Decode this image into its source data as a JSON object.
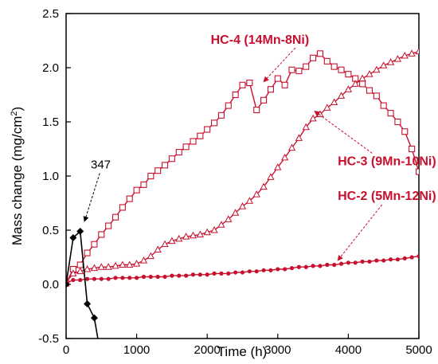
{
  "chart_data": {
    "type": "line",
    "title": "",
    "xlabel": "Time (h)",
    "ylabel_parts": [
      "Mass change (mg/cm",
      "2",
      ")"
    ],
    "xlim": [
      0,
      5000
    ],
    "ylim": [
      -0.5,
      2.5
    ],
    "x_ticks": [
      "0",
      "1000",
      "2000",
      "3000",
      "4000",
      "5000"
    ],
    "y_ticks": [
      "-0.5",
      "0.0",
      "0.5",
      "1.0",
      "1.5",
      "2.0",
      "2.5"
    ],
    "grid": false,
    "series": [
      {
        "name": "HC-4 (14Mn-8Ni)",
        "marker": "open-square",
        "color": "#c8102e",
        "x": [
          0,
          100,
          200,
          300,
          400,
          500,
          600,
          700,
          800,
          900,
          1000,
          1100,
          1200,
          1300,
          1400,
          1500,
          1600,
          1700,
          1800,
          1900,
          2000,
          2100,
          2200,
          2300,
          2400,
          2500,
          2600,
          2700,
          2800,
          2900,
          3000,
          3100,
          3200,
          3300,
          3400,
          3500,
          3600,
          3700,
          3800,
          3900,
          4000,
          4100,
          4200,
          4300,
          4400,
          4500,
          4600,
          4700,
          4800,
          4900,
          5000
        ],
        "y": [
          0.01,
          0.14,
          0.18,
          0.29,
          0.37,
          0.46,
          0.54,
          0.62,
          0.71,
          0.79,
          0.87,
          0.92,
          1.0,
          1.05,
          1.1,
          1.16,
          1.22,
          1.27,
          1.32,
          1.37,
          1.43,
          1.49,
          1.56,
          1.65,
          1.75,
          1.84,
          1.86,
          1.61,
          1.7,
          1.8,
          1.9,
          1.84,
          1.98,
          1.97,
          2.01,
          2.09,
          2.13,
          2.06,
          2.01,
          1.98,
          1.94,
          1.9,
          1.85,
          1.79,
          1.74,
          1.65,
          1.58,
          1.5,
          1.41,
          1.25,
          1.04
        ]
      },
      {
        "name": "HC-3 (9Mn-10Ni)",
        "marker": "open-triangle",
        "color": "#c8102e",
        "x": [
          0,
          100,
          200,
          300,
          400,
          500,
          600,
          700,
          800,
          900,
          1000,
          1100,
          1200,
          1300,
          1400,
          1500,
          1600,
          1700,
          1800,
          1900,
          2000,
          2100,
          2200,
          2300,
          2400,
          2500,
          2600,
          2700,
          2800,
          2900,
          3000,
          3100,
          3200,
          3300,
          3400,
          3500,
          3600,
          3700,
          3800,
          3900,
          4000,
          4100,
          4200,
          4300,
          4400,
          4500,
          4600,
          4700,
          4800,
          4900,
          5000
        ],
        "y": [
          0.02,
          0.1,
          0.12,
          0.14,
          0.15,
          0.16,
          0.16,
          0.17,
          0.18,
          0.18,
          0.19,
          0.22,
          0.26,
          0.32,
          0.37,
          0.4,
          0.42,
          0.44,
          0.45,
          0.46,
          0.48,
          0.5,
          0.55,
          0.6,
          0.66,
          0.72,
          0.77,
          0.83,
          0.9,
          0.99,
          1.08,
          1.17,
          1.26,
          1.35,
          1.45,
          1.53,
          1.57,
          1.63,
          1.68,
          1.74,
          1.8,
          1.85,
          1.9,
          1.94,
          1.98,
          2.02,
          2.05,
          2.08,
          2.11,
          2.13,
          2.15
        ]
      },
      {
        "name": "HC-2 (5Mn-12Ni)",
        "marker": "filled-circle",
        "color": "#c8102e",
        "x": [
          0,
          100,
          200,
          300,
          400,
          500,
          600,
          700,
          800,
          900,
          1000,
          1100,
          1200,
          1300,
          1400,
          1500,
          1600,
          1700,
          1800,
          1900,
          2000,
          2100,
          2200,
          2300,
          2400,
          2500,
          2600,
          2700,
          2800,
          2900,
          3000,
          3100,
          3200,
          3300,
          3400,
          3500,
          3600,
          3700,
          3800,
          3900,
          4000,
          4100,
          4200,
          4300,
          4400,
          4500,
          4600,
          4700,
          4800,
          4900,
          5000
        ],
        "y": [
          0.01,
          0.04,
          0.04,
          0.05,
          0.05,
          0.05,
          0.05,
          0.06,
          0.06,
          0.06,
          0.06,
          0.07,
          0.07,
          0.07,
          0.07,
          0.08,
          0.08,
          0.08,
          0.09,
          0.09,
          0.09,
          0.1,
          0.1,
          0.1,
          0.11,
          0.11,
          0.12,
          0.12,
          0.13,
          0.13,
          0.14,
          0.14,
          0.15,
          0.16,
          0.16,
          0.17,
          0.17,
          0.18,
          0.18,
          0.19,
          0.2,
          0.2,
          0.21,
          0.21,
          0.22,
          0.22,
          0.23,
          0.23,
          0.24,
          0.25,
          0.26
        ]
      },
      {
        "name": "347",
        "marker": "filled-diamond",
        "color": "#000000",
        "x": [
          0,
          100,
          200,
          300,
          400,
          450
        ],
        "y": [
          0.0,
          0.43,
          0.49,
          -0.18,
          -0.31,
          -0.5
        ],
        "clip_below_axis": true
      }
    ],
    "annotations": [
      {
        "text": "HC-4 (14Mn-8Ni)",
        "series": "HC-4 (14Mn-8Ni)",
        "style": "red",
        "arrow_to": [
          2800,
          1.87
        ],
        "text_at": [
          2050,
          2.22
        ]
      },
      {
        "text": "HC-3 (9Mn-10Ni)",
        "series": "HC-3 (9Mn-10Ni)",
        "style": "red",
        "arrow_to": [
          3520,
          1.6
        ],
        "text_at": [
          3850,
          1.1
        ]
      },
      {
        "text": "HC-2 (5Mn-12Ni)",
        "series": "HC-2 (5Mn-12Ni)",
        "style": "red",
        "arrow_to": [
          3850,
          0.22
        ],
        "text_at": [
          3850,
          0.78
        ]
      },
      {
        "text": "347",
        "series": "347",
        "style": "black",
        "arrow_to": [
          260,
          0.58
        ],
        "text_at": [
          350,
          1.07
        ]
      }
    ]
  }
}
